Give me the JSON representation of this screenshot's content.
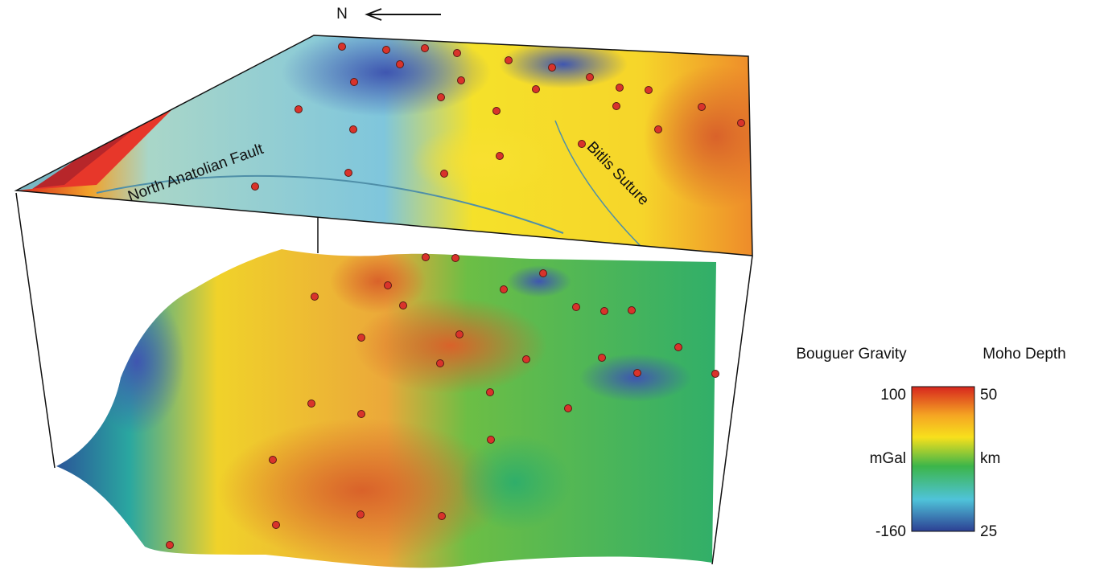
{
  "north_label": "N",
  "map_labels": {
    "fault": "North Anatolian Fault",
    "suture": "Bitlis Suture"
  },
  "colorbar": {
    "left_title": "Bouguer Gravity",
    "right_title": "Moho Depth",
    "left_labels": [
      "100",
      "mGal",
      "-160"
    ],
    "right_labels": [
      "50",
      "km",
      "25"
    ]
  }
}
